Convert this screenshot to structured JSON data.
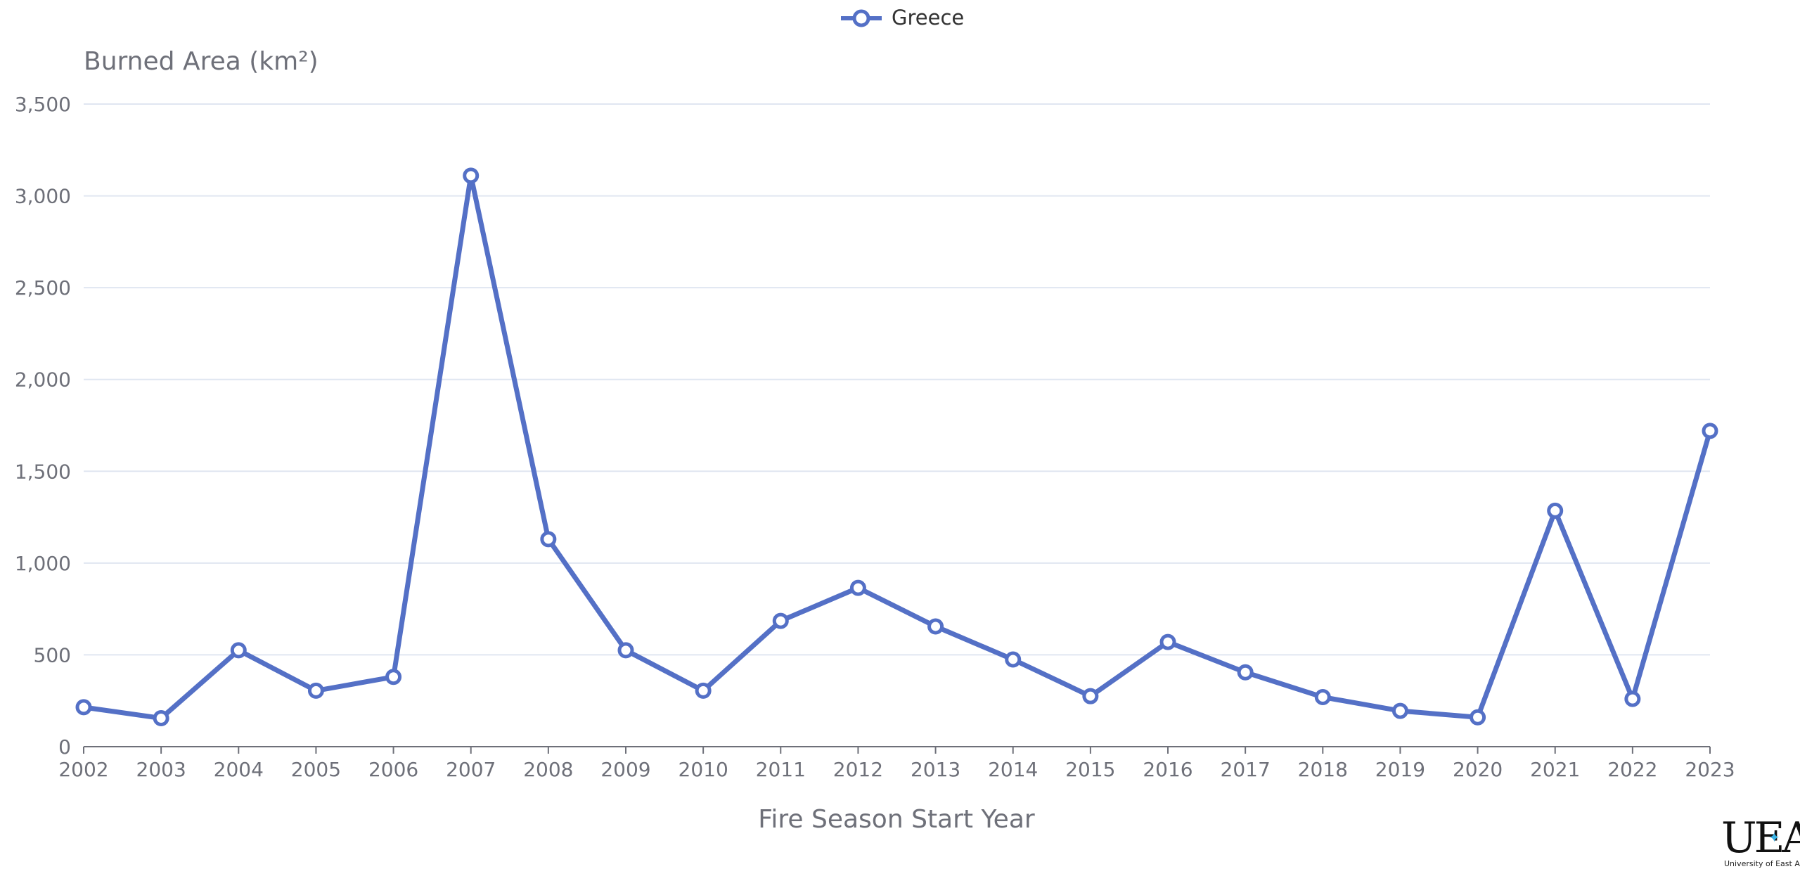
{
  "chart_data": {
    "type": "line",
    "categories": [
      "2002",
      "2003",
      "2004",
      "2005",
      "2006",
      "2007",
      "2008",
      "2009",
      "2010",
      "2011",
      "2012",
      "2013",
      "2014",
      "2015",
      "2016",
      "2017",
      "2018",
      "2019",
      "2020",
      "2021",
      "2022",
      "2023"
    ],
    "series": [
      {
        "name": "Greece",
        "color": "#5470c6",
        "values": [
          215,
          155,
          525,
          305,
          380,
          3110,
          1130,
          525,
          305,
          685,
          865,
          655,
          475,
          275,
          570,
          405,
          270,
          195,
          160,
          1285,
          260,
          1720
        ]
      }
    ],
    "xlabel": "Fire Season Start Year",
    "ylabel": "Burned Area (km²)",
    "ylim": [
      0,
      3500
    ],
    "yticks": [
      "0",
      "500",
      "1,000",
      "1,500",
      "2,000",
      "2,500",
      "3,000",
      "3,500"
    ],
    "grid": true,
    "legend_position": "top-center"
  },
  "logo": {
    "mark": "UEA",
    "caption": "University of East Anglia"
  }
}
